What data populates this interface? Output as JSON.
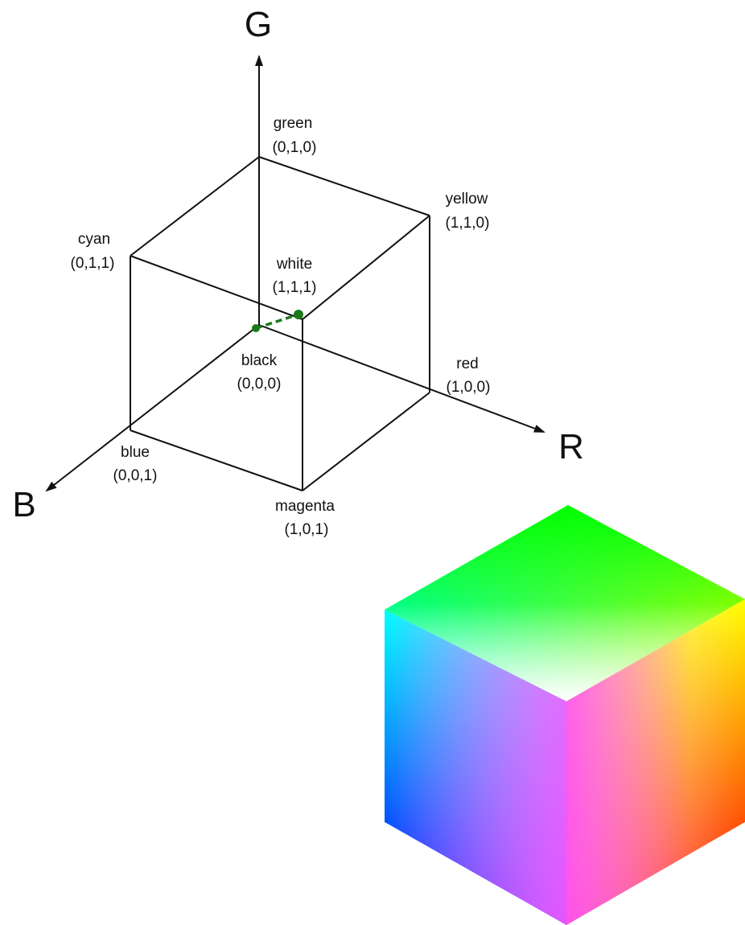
{
  "axes": {
    "g": "G",
    "r": "R",
    "b": "B"
  },
  "vertices": {
    "green": {
      "name": "green",
      "coords": "(0,1,0)"
    },
    "yellow": {
      "name": "yellow",
      "coords": "(1,1,0)"
    },
    "cyan": {
      "name": "cyan",
      "coords": "(0,1,1)"
    },
    "white": {
      "name": "white",
      "coords": "(1,1,1)"
    },
    "black": {
      "name": "black",
      "coords": "(0,0,0)"
    },
    "red": {
      "name": "red",
      "coords": "(1,0,0)"
    },
    "blue": {
      "name": "blue",
      "coords": "(0,0,1)"
    },
    "magenta": {
      "name": "magenta",
      "coords": "(1,0,1)"
    }
  },
  "colors": {
    "line": "#111111",
    "diagonal": "#1a7a1a",
    "green": "#00ff00",
    "yellow": "#ffff00",
    "cyan": "#00ffff",
    "white": "#ffffff",
    "red": "#ff0000",
    "blue": "#0000ff",
    "magenta": "#ff00ff"
  }
}
